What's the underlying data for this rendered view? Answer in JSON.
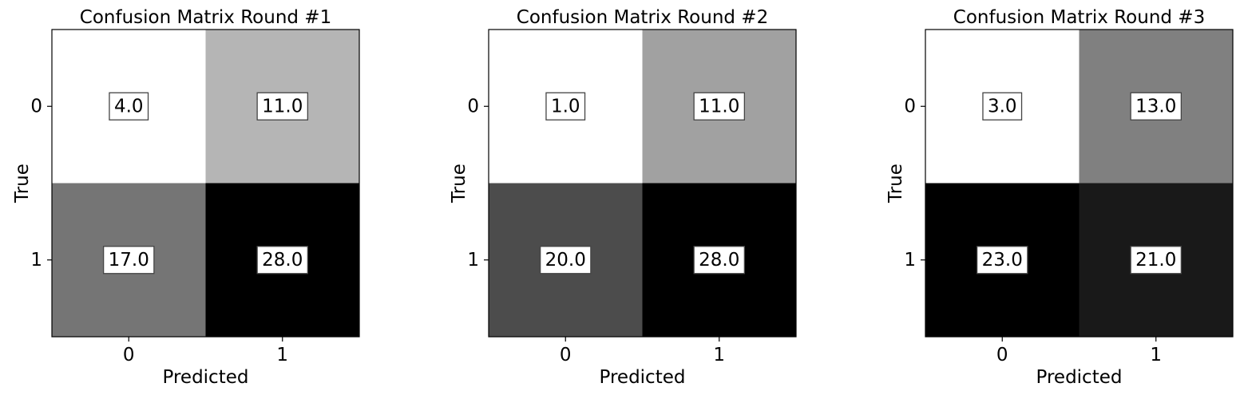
{
  "chart_data": [
    {
      "type": "heatmap",
      "title": "Confusion Matrix Round #1",
      "xlabel": "Predicted",
      "ylabel": "True",
      "x_categories": [
        "0",
        "1"
      ],
      "y_categories": [
        "0",
        "1"
      ],
      "values": [
        [
          4.0,
          11.0
        ],
        [
          17.0,
          28.0
        ]
      ],
      "value_labels": [
        [
          "4.0",
          "11.0"
        ],
        [
          "17.0",
          "28.0"
        ]
      ],
      "colormap": "white-to-black",
      "grid": false
    },
    {
      "type": "heatmap",
      "title": "Confusion Matrix Round #2",
      "xlabel": "Predicted",
      "ylabel": "True",
      "x_categories": [
        "0",
        "1"
      ],
      "y_categories": [
        "0",
        "1"
      ],
      "values": [
        [
          1.0,
          11.0
        ],
        [
          20.0,
          28.0
        ]
      ],
      "value_labels": [
        [
          "1.0",
          "11.0"
        ],
        [
          "20.0",
          "28.0"
        ]
      ],
      "colormap": "white-to-black",
      "grid": false
    },
    {
      "type": "heatmap",
      "title": "Confusion Matrix Round #3",
      "xlabel": "Predicted",
      "ylabel": "True",
      "x_categories": [
        "0",
        "1"
      ],
      "y_categories": [
        "0",
        "1"
      ],
      "values": [
        [
          3.0,
          13.0
        ],
        [
          23.0,
          21.0
        ]
      ],
      "value_labels": [
        [
          "3.0",
          "13.0"
        ],
        [
          "23.0",
          "21.0"
        ]
      ],
      "colormap": "white-to-black",
      "grid": false
    }
  ]
}
